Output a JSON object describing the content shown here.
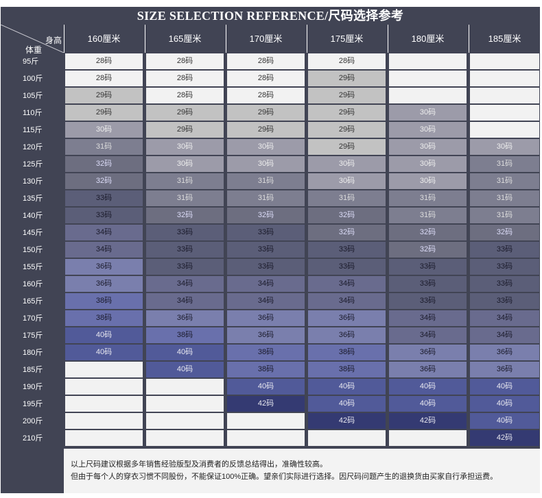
{
  "title": "SIZE SELECTION REFERENCE/尺码选择参考",
  "corner": {
    "top_label": "身高",
    "bottom_label": "体重"
  },
  "heights": [
    "160厘米",
    "165厘米",
    "170厘米",
    "175厘米",
    "180厘米",
    "185厘米"
  ],
  "weights": [
    "95斤",
    "100斤",
    "105斤",
    "110斤",
    "115斤",
    "120斤",
    "125斤",
    "130斤",
    "135斤",
    "140斤",
    "145斤",
    "150斤",
    "155斤",
    "160斤",
    "165斤",
    "170斤",
    "175斤",
    "180斤",
    "185斤",
    "190斤",
    "195斤",
    "200斤",
    "210斤"
  ],
  "table": [
    [
      "28码",
      "28码",
      "28码",
      "28码",
      "",
      ""
    ],
    [
      "28码",
      "28码",
      "28码",
      "29码",
      "",
      ""
    ],
    [
      "29码",
      "28码",
      "28码",
      "29码",
      "",
      ""
    ],
    [
      "29码",
      "29码",
      "29码",
      "29码",
      "30码",
      ""
    ],
    [
      "30码",
      "29码",
      "29码",
      "29码",
      "30码",
      ""
    ],
    [
      "31码",
      "30码",
      "30码",
      "29码",
      "30码",
      "30码"
    ],
    [
      "32码",
      "30码",
      "30码",
      "30码",
      "30码",
      "31码"
    ],
    [
      "32码",
      "31码",
      "31码",
      "30码",
      "30码",
      "31码"
    ],
    [
      "33码",
      "31码",
      "31码",
      "31码",
      "31码",
      "31码"
    ],
    [
      "33码",
      "32码",
      "32码",
      "32码",
      "31码",
      "31码"
    ],
    [
      "34码",
      "33码",
      "33码",
      "32码",
      "32码",
      "32码"
    ],
    [
      "34码",
      "33码",
      "33码",
      "33码",
      "32码",
      "33码"
    ],
    [
      "36码",
      "33码",
      "33码",
      "33码",
      "33码",
      "33码"
    ],
    [
      "36码",
      "34码",
      "34码",
      "34码",
      "33码",
      "33码"
    ],
    [
      "38码",
      "34码",
      "34码",
      "34码",
      "33码",
      "33码"
    ],
    [
      "38码",
      "36码",
      "36码",
      "36码",
      "34码",
      "34码"
    ],
    [
      "40码",
      "38码",
      "36码",
      "36码",
      "34码",
      "34码"
    ],
    [
      "40码",
      "40码",
      "38码",
      "38码",
      "36码",
      "36码"
    ],
    [
      "",
      "40码",
      "38码",
      "38码",
      "36码",
      "36码"
    ],
    [
      "",
      "",
      "40码",
      "40码",
      "40码",
      "40码"
    ],
    [
      "",
      "",
      "42码",
      "40码",
      "40码",
      "40码"
    ],
    [
      "",
      "",
      "",
      "42码",
      "42码",
      "40码"
    ],
    [
      "",
      "",
      "",
      "",
      "",
      "42码"
    ]
  ],
  "size_colors": {
    "": "#f2f2f2",
    "28码": "#f2f2f2",
    "29码": "#c2c2c2",
    "30码": "#9c9ba9",
    "31码": "#7d7e90",
    "32码": "#6d6e80",
    "33码": "#5b5e78",
    "34码": "#696b8e",
    "36码": "#7a7fad",
    "38码": "#6970ac",
    "40码": "#515a99",
    "42码": "#343a72"
  },
  "size_text_colors": {
    "28码": "#333333",
    "29码": "#333333",
    "30码": "#eeeeee",
    "31码": "#dddddd",
    "32码": "#dcdcf8",
    "33码": "#1a1a2a",
    "34码": "#1a1a2a",
    "36码": "#1a1a2a",
    "38码": "#1a1a2a",
    "40码": "#e8e8f0",
    "42码": "#e8e8f0"
  },
  "note": {
    "line1": "以上尺码建议根据多年销售经验版型及消费者的反馈总结得出，准确性较高。",
    "line2": "但由于每个人的穿衣习惯不同股份，不能保证100%正确。望亲们实际进行选择。因尺码问题产生的退换货由买家自行承担运费。"
  }
}
